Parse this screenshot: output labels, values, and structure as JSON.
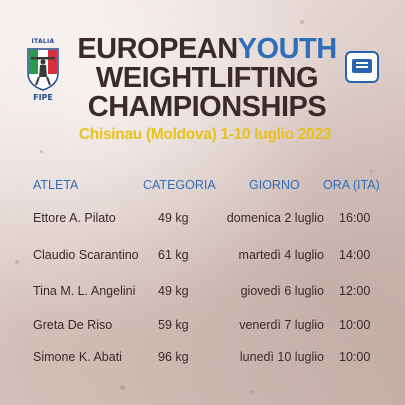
{
  "logo_left": {
    "country_label": "ITALIA",
    "federation_abbr": "FIPE"
  },
  "title": {
    "line1_part1": "EUROPEAN",
    "line1_part2": "YOUTH",
    "line2": "WEIGHTLIFTING",
    "line3": "CHAMPIONSHIPS",
    "subtitle": "Chisinau (Moldova)  1-10 luglio 2023"
  },
  "colors": {
    "accent_blue": "#2e6fb8",
    "accent_yellow": "#e8c21a",
    "text_dark": "#3b2a2a"
  },
  "table": {
    "headers": {
      "athlete": "ATLETA",
      "category": "CATEGORIA",
      "day": "GIORNO",
      "time": "ORA (ITA)"
    },
    "rows": [
      {
        "athlete": "Ettore A. Pilato",
        "category": "49 kg",
        "day": "domenica 2 luglio",
        "time": "16:00"
      },
      {
        "athlete": "Claudio Scarantino",
        "category": "61 kg",
        "day": "martedì 4 luglio",
        "time": "14:00"
      },
      {
        "athlete": "Tina M. L. Angelini",
        "category": "49 kg",
        "day": "giovedì 6 luglio",
        "time": "12:00"
      },
      {
        "athlete": "Greta De Riso",
        "category": "59 kg",
        "day": "venerdì 7 luglio",
        "time": "10:00"
      },
      {
        "athlete": "Simone K. Abati",
        "category": "96 kg",
        "day": "lunedì 10 luglio",
        "time": "10:00"
      }
    ]
  }
}
